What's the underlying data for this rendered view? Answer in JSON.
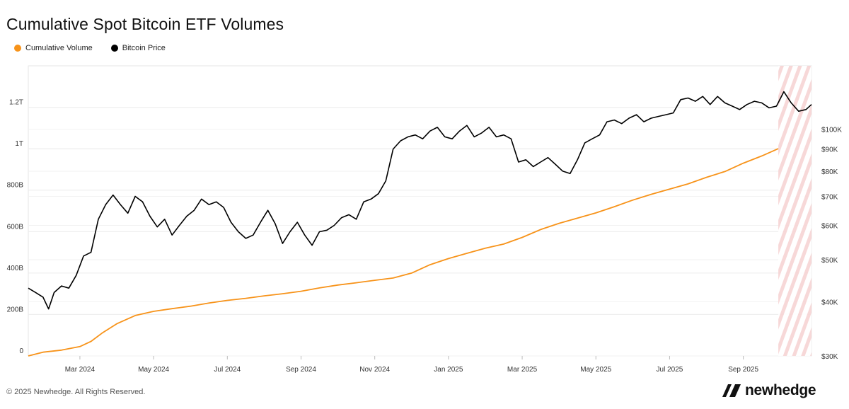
{
  "title": "Cumulative Spot Bitcoin ETF Volumes",
  "legend": [
    {
      "label": "Cumulative Volume",
      "color": "#f7931a"
    },
    {
      "label": "Bitcoin Price",
      "color": "#000000"
    }
  ],
  "footer": "© 2025 Newhedge. All Rights Reserved.",
  "brand": "newhedge",
  "chart_data": {
    "type": "line",
    "title": "Cumulative Spot Bitcoin ETF Volumes",
    "x_ticks": [
      "Mar 2024",
      "May 2024",
      "Jul 2024",
      "Sep 2024",
      "Nov 2024",
      "Jan 2025",
      "Mar 2025",
      "May 2025",
      "Jul 2025",
      "Sep 2025"
    ],
    "x_tick_months": [
      1,
      3,
      5,
      7,
      9,
      11,
      13,
      15,
      17,
      19
    ],
    "x_range_months": [
      -0.4,
      20.85
    ],
    "left_axis": {
      "ticks": [
        "0",
        "200B",
        "400B",
        "600B",
        "800B",
        "1T",
        "1.2T"
      ],
      "tick_values": [
        0,
        200,
        400,
        600,
        800,
        1000,
        1200
      ],
      "unit": "billions USD",
      "range": [
        0,
        1400
      ]
    },
    "right_axis": {
      "ticks": [
        "$30K",
        "$40K",
        "$50K",
        "$60K",
        "$70K",
        "$80K",
        "$90K",
        "$100K"
      ],
      "tick_values": [
        30000,
        40000,
        50000,
        60000,
        70000,
        80000,
        90000,
        100000
      ],
      "scale": "log",
      "range": [
        30000,
        140000
      ]
    },
    "hatched_region_months": [
      19.95,
      20.85
    ],
    "series": [
      {
        "name": "Cumulative Volume",
        "axis": "left",
        "color": "#f7931a",
        "points": [
          [
            -0.4,
            0
          ],
          [
            0,
            18
          ],
          [
            0.5,
            28
          ],
          [
            1,
            45
          ],
          [
            1.3,
            70
          ],
          [
            1.6,
            110
          ],
          [
            2,
            155
          ],
          [
            2.5,
            195
          ],
          [
            3,
            215
          ],
          [
            3.5,
            228
          ],
          [
            4,
            240
          ],
          [
            4.5,
            255
          ],
          [
            5,
            268
          ],
          [
            5.5,
            278
          ],
          [
            6,
            290
          ],
          [
            6.5,
            300
          ],
          [
            7,
            312
          ],
          [
            7.5,
            328
          ],
          [
            8,
            342
          ],
          [
            8.5,
            353
          ],
          [
            9,
            365
          ],
          [
            9.5,
            376
          ],
          [
            10,
            400
          ],
          [
            10.5,
            440
          ],
          [
            11,
            470
          ],
          [
            11.5,
            495
          ],
          [
            12,
            520
          ],
          [
            12.5,
            540
          ],
          [
            13,
            572
          ],
          [
            13.5,
            610
          ],
          [
            14,
            640
          ],
          [
            14.5,
            665
          ],
          [
            15,
            690
          ],
          [
            15.5,
            720
          ],
          [
            16,
            752
          ],
          [
            16.5,
            780
          ],
          [
            17,
            805
          ],
          [
            17.5,
            830
          ],
          [
            18,
            862
          ],
          [
            18.5,
            890
          ],
          [
            19,
            930
          ],
          [
            19.5,
            965
          ],
          [
            19.95,
            1000
          ]
        ]
      },
      {
        "name": "Bitcoin Price",
        "axis": "right",
        "color": "#000000",
        "points": [
          [
            -0.4,
            43000
          ],
          [
            -0.2,
            42000
          ],
          [
            0,
            41000
          ],
          [
            0.15,
            38500
          ],
          [
            0.3,
            42000
          ],
          [
            0.5,
            43500
          ],
          [
            0.7,
            43000
          ],
          [
            0.9,
            46000
          ],
          [
            1.1,
            51000
          ],
          [
            1.3,
            52000
          ],
          [
            1.5,
            62000
          ],
          [
            1.7,
            67000
          ],
          [
            1.9,
            70500
          ],
          [
            2.1,
            67000
          ],
          [
            2.3,
            64000
          ],
          [
            2.5,
            70000
          ],
          [
            2.7,
            68000
          ],
          [
            2.9,
            63000
          ],
          [
            3.1,
            59500
          ],
          [
            3.3,
            62000
          ],
          [
            3.5,
            57000
          ],
          [
            3.7,
            60000
          ],
          [
            3.9,
            63000
          ],
          [
            4.1,
            65000
          ],
          [
            4.3,
            69000
          ],
          [
            4.5,
            67000
          ],
          [
            4.7,
            68000
          ],
          [
            4.9,
            66000
          ],
          [
            5.1,
            61000
          ],
          [
            5.3,
            58000
          ],
          [
            5.5,
            56000
          ],
          [
            5.7,
            57000
          ],
          [
            5.9,
            61000
          ],
          [
            6.1,
            65000
          ],
          [
            6.3,
            60500
          ],
          [
            6.5,
            54500
          ],
          [
            6.7,
            58000
          ],
          [
            6.9,
            61000
          ],
          [
            7.1,
            57000
          ],
          [
            7.3,
            54000
          ],
          [
            7.5,
            58000
          ],
          [
            7.7,
            58500
          ],
          [
            7.9,
            60000
          ],
          [
            8.1,
            62500
          ],
          [
            8.3,
            63500
          ],
          [
            8.5,
            62000
          ],
          [
            8.7,
            68000
          ],
          [
            8.9,
            69000
          ],
          [
            9.1,
            71000
          ],
          [
            9.3,
            76000
          ],
          [
            9.5,
            90000
          ],
          [
            9.7,
            94000
          ],
          [
            9.9,
            96000
          ],
          [
            10.1,
            97000
          ],
          [
            10.3,
            95000
          ],
          [
            10.5,
            99000
          ],
          [
            10.7,
            101000
          ],
          [
            10.9,
            96000
          ],
          [
            11.1,
            95000
          ],
          [
            11.3,
            99000
          ],
          [
            11.5,
            102000
          ],
          [
            11.7,
            96000
          ],
          [
            11.9,
            98000
          ],
          [
            12.1,
            101000
          ],
          [
            12.3,
            96000
          ],
          [
            12.5,
            97000
          ],
          [
            12.7,
            95000
          ],
          [
            12.9,
            84000
          ],
          [
            13.1,
            85000
          ],
          [
            13.3,
            82000
          ],
          [
            13.5,
            84000
          ],
          [
            13.7,
            86000
          ],
          [
            13.9,
            83000
          ],
          [
            14.1,
            80000
          ],
          [
            14.3,
            79000
          ],
          [
            14.5,
            85000
          ],
          [
            14.7,
            93000
          ],
          [
            14.9,
            95000
          ],
          [
            15.1,
            97000
          ],
          [
            15.3,
            104000
          ],
          [
            15.5,
            105000
          ],
          [
            15.7,
            103000
          ],
          [
            15.9,
            106000
          ],
          [
            16.1,
            108000
          ],
          [
            16.3,
            104000
          ],
          [
            16.5,
            106000
          ],
          [
            16.7,
            107000
          ],
          [
            16.9,
            108000
          ],
          [
            17.1,
            109000
          ],
          [
            17.3,
            117000
          ],
          [
            17.5,
            118000
          ],
          [
            17.7,
            116000
          ],
          [
            17.9,
            119000
          ],
          [
            18.1,
            114000
          ],
          [
            18.3,
            119000
          ],
          [
            18.5,
            115000
          ],
          [
            18.7,
            113000
          ],
          [
            18.9,
            111000
          ],
          [
            19.1,
            114000
          ],
          [
            19.3,
            116000
          ],
          [
            19.5,
            115000
          ],
          [
            19.7,
            112000
          ],
          [
            19.9,
            113000
          ],
          [
            20.1,
            122000
          ],
          [
            20.3,
            115000
          ],
          [
            20.5,
            110000
          ],
          [
            20.7,
            111000
          ],
          [
            20.85,
            114000
          ]
        ]
      }
    ]
  }
}
